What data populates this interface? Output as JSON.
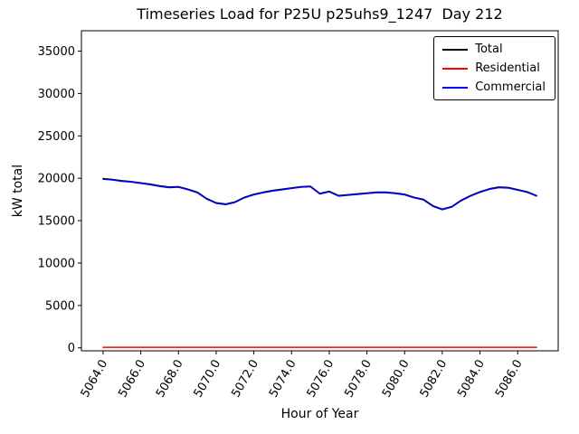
{
  "chart_data": {
    "type": "line",
    "title": "Timeseries Load for P25U p25uhs9_1247  Day 212",
    "xlabel": "Hour of Year",
    "ylabel": "kW total",
    "grid": false,
    "legend_position": "upper right",
    "xlim": [
      5062.85,
      5088.15
    ],
    "ylim": [
      -350,
      37400
    ],
    "x_tick_labels": [
      "5064.0",
      "5066.0",
      "5068.0",
      "5070.0",
      "5072.0",
      "5074.0",
      "5076.0",
      "5078.0",
      "5080.0",
      "5082.0",
      "5084.0",
      "5086.0"
    ],
    "y_ticks": [
      0,
      5000,
      10000,
      15000,
      20000,
      25000,
      30000,
      35000
    ],
    "x": [
      5064.0,
      5064.5,
      5065.0,
      5065.5,
      5066.0,
      5066.5,
      5067.0,
      5067.5,
      5068.0,
      5068.5,
      5069.0,
      5069.5,
      5070.0,
      5070.5,
      5071.0,
      5071.5,
      5072.0,
      5072.5,
      5073.0,
      5073.5,
      5074.0,
      5074.5,
      5075.0,
      5075.5,
      5076.0,
      5076.5,
      5077.0,
      5077.5,
      5078.0,
      5078.5,
      5079.0,
      5079.5,
      5080.0,
      5080.5,
      5081.0,
      5081.5,
      5082.0,
      5082.5,
      5083.0,
      5083.5,
      5084.0,
      5084.5,
      5085.0,
      5085.5,
      5086.0,
      5086.5,
      5087.0
    ],
    "series": [
      {
        "name": "Total",
        "color": "#000000",
        "values": [
          19960,
          19860,
          19710,
          19610,
          19460,
          19310,
          19110,
          18960,
          19010,
          18710,
          18360,
          17610,
          17110,
          16960,
          17210,
          17760,
          18110,
          18360,
          18560,
          18710,
          18860,
          19010,
          19060,
          18210,
          18460,
          17960,
          18060,
          18160,
          18260,
          18360,
          18360,
          18260,
          18110,
          17760,
          17510,
          16760,
          16360,
          16660,
          17410,
          17960,
          18410,
          18760,
          18960,
          18910,
          18660,
          18410,
          17960
        ]
      },
      {
        "name": "Residential",
        "color": "#ff0000",
        "values": [
          60,
          60,
          60,
          60,
          60,
          60,
          60,
          60,
          60,
          60,
          60,
          60,
          60,
          60,
          60,
          60,
          60,
          60,
          60,
          60,
          60,
          60,
          60,
          60,
          60,
          60,
          60,
          60,
          60,
          60,
          60,
          60,
          60,
          60,
          60,
          60,
          60,
          60,
          60,
          60,
          60,
          60,
          60,
          60,
          60,
          60,
          60
        ]
      },
      {
        "name": "Commercial",
        "color": "#0000ff",
        "values": [
          19900,
          19800,
          19650,
          19550,
          19400,
          19250,
          19050,
          18900,
          18950,
          18650,
          18300,
          17550,
          17050,
          16900,
          17150,
          17700,
          18050,
          18300,
          18500,
          18650,
          18800,
          18950,
          19000,
          18150,
          18400,
          17900,
          18000,
          18100,
          18200,
          18300,
          18300,
          18200,
          18050,
          17700,
          17450,
          16700,
          16300,
          16600,
          17350,
          17900,
          18350,
          18700,
          18900,
          18850,
          18600,
          18350,
          17900
        ]
      }
    ]
  }
}
